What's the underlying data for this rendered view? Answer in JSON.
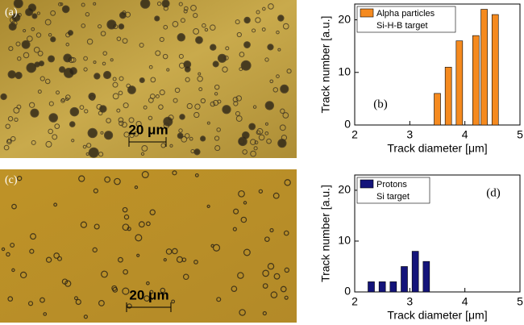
{
  "panels": [
    {
      "label": "(a)",
      "scale_bar": "20 μm"
    },
    {
      "label": "(c)",
      "scale_bar": "20 μm"
    }
  ],
  "chart_data": [
    {
      "type": "bar",
      "x": [
        3.5,
        3.7,
        3.9,
        4.2,
        4.35,
        4.55
      ],
      "series": [
        {
          "name": "Alpha particles",
          "color": "#f58a1f",
          "values": [
            6,
            11,
            16,
            17,
            22,
            21
          ]
        }
      ],
      "legend_note": "Si-H-B target",
      "annotation": "(b)",
      "xlim": [
        2,
        5
      ],
      "xticks": [
        2,
        3,
        4,
        5
      ],
      "ylim": [
        0,
        23
      ],
      "yticks": [
        0,
        10,
        20
      ],
      "xlabel": "Track diameter [μm]",
      "ylabel": "Track number [a.u.]"
    },
    {
      "type": "bar",
      "x": [
        2.3,
        2.5,
        2.7,
        2.9,
        3.1,
        3.3
      ],
      "series": [
        {
          "name": "Protons",
          "color": "#14147a",
          "values": [
            2,
            2,
            2,
            5,
            8,
            6
          ]
        }
      ],
      "legend_note": "Si target",
      "annotation": "(d)",
      "xlim": [
        2,
        5
      ],
      "xticks": [
        2,
        3,
        4,
        5
      ],
      "ylim": [
        0,
        23
      ],
      "yticks": [
        0,
        10,
        20
      ],
      "xlabel": "Track diameter [μm]",
      "ylabel": "Track number [a.u.]"
    }
  ]
}
